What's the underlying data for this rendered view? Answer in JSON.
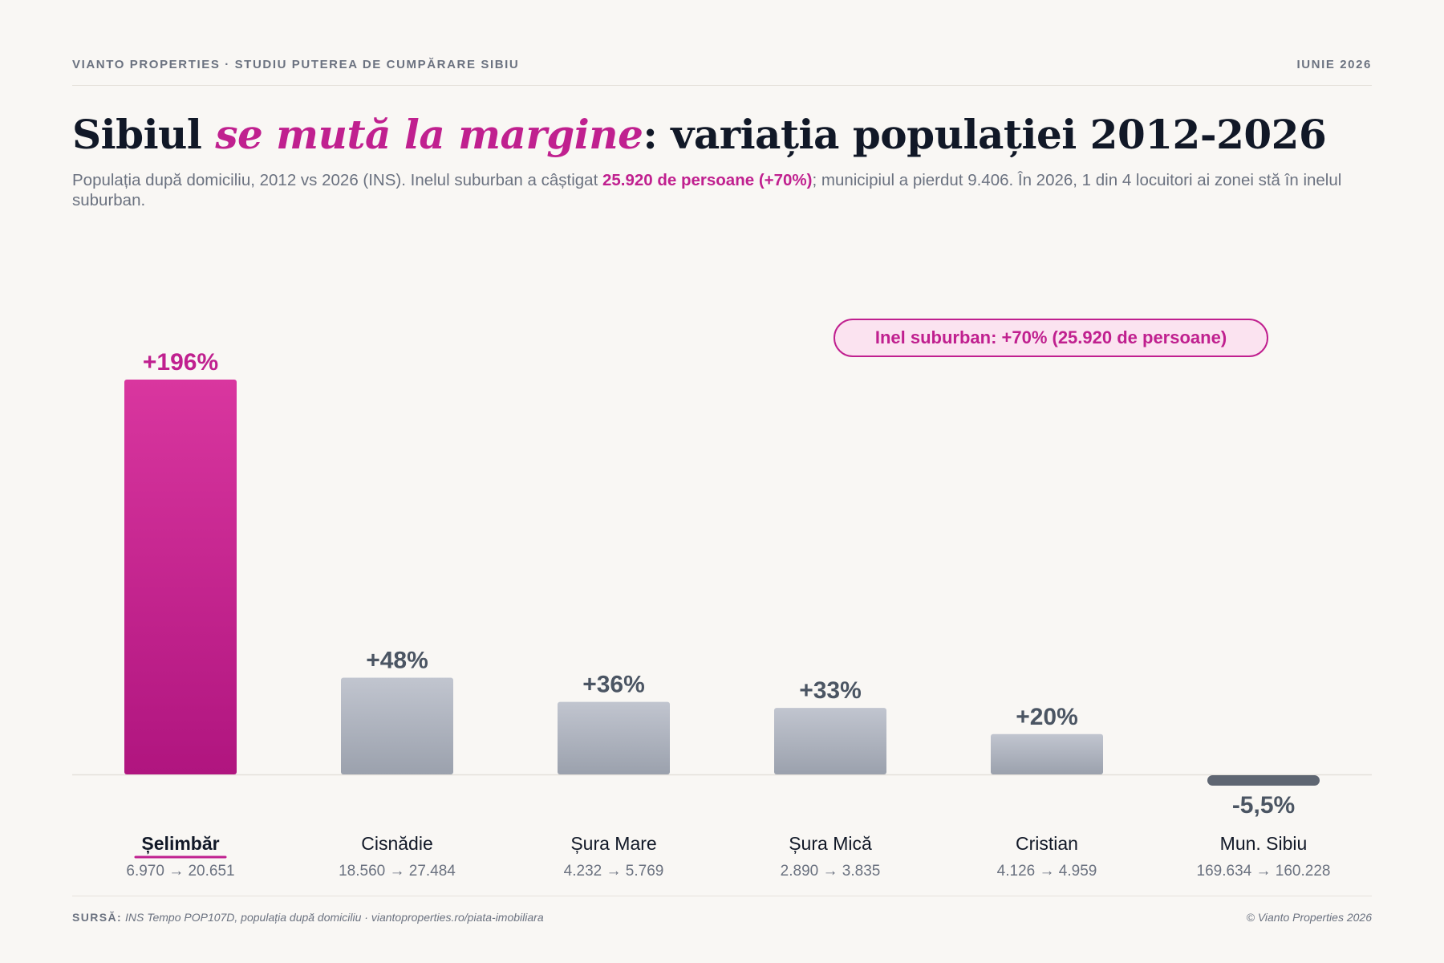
{
  "header": {
    "brand": "VIANTO PROPERTIES · STUDIU PUTEREA DE CUMPĂRARE SIBIU",
    "date": "IUNIE 2026"
  },
  "title": {
    "part1": "Sibiul ",
    "accent": "se mută la margine",
    "part2": ": variația populației 2012-2026"
  },
  "subtitle": {
    "part1": "Populația după domiciliu, 2012 vs 2026 (INS). Inelul suburban a câștigat ",
    "highlight": "25.920 de persoane (+70%)",
    "part2": "; municipiul a pierdut 9.406. În 2026, 1 din 4 locuitori ai zonei stă în inelul suburban."
  },
  "callout": "Inel suburban: +70% (25.920 de persoane)",
  "chart_data": {
    "type": "bar",
    "categories": [
      "Șelimbăr",
      "Cisnădie",
      "Șura Mare",
      "Șura Mică",
      "Cristian",
      "Mun. Sibiu"
    ],
    "values": [
      196,
      48,
      36,
      33,
      20,
      -5.5
    ],
    "value_labels": [
      "+196%",
      "+48%",
      "+36%",
      "+33%",
      "+20%",
      "-5,5%"
    ],
    "population": [
      "6.970 → 20.651",
      "18.560 → 27.484",
      "4.232 → 5.769",
      "2.890 → 3.835",
      "4.126 → 4.959",
      "169.634 → 160.228"
    ],
    "highlight_category": "Șelimbăr",
    "colors": {
      "highlight": "#c0208f",
      "highlight_top": "#d9369f",
      "highlight_bottom": "#b0157f",
      "neutral_top": "#c1c5cf",
      "neutral_bottom": "#9ba1ad",
      "negative": "#5f6672",
      "neutral_label": "#4b5563"
    },
    "title": "",
    "xlabel": "",
    "ylabel": ""
  },
  "footer": {
    "source_label": "SURSĂ:",
    "source_text": " INS Tempo POP107D, populația după domiciliu · viantoproperties.ro/piata-imobiliara",
    "copyright": "© Vianto Properties 2026"
  }
}
